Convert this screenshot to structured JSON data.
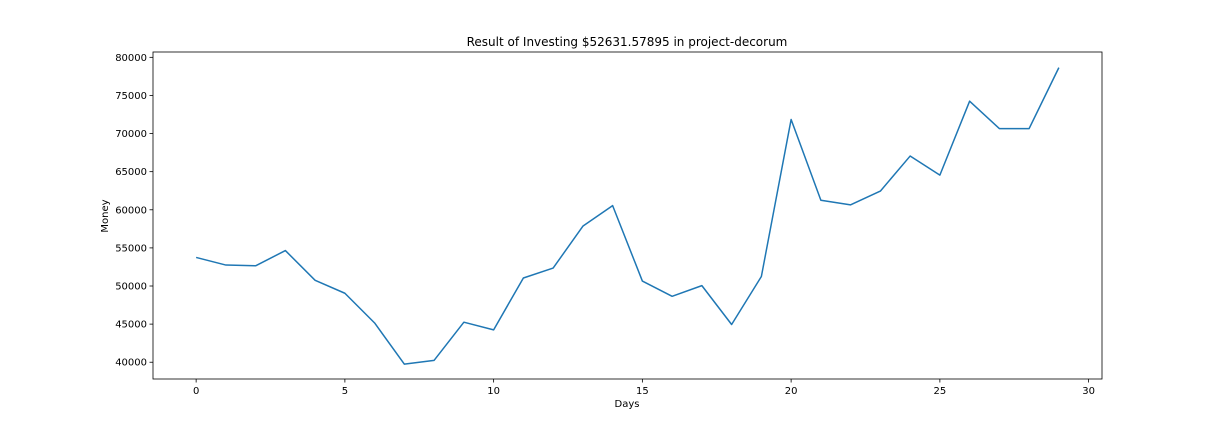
{
  "chart_data": {
    "type": "line",
    "title": "Result of Investing $52631.57895 in project-decorum",
    "xlabel": "Days",
    "ylabel": "Money",
    "xlim": [
      -1.45,
      30.45
    ],
    "ylim": [
      37800,
      80700
    ],
    "xticks": [
      0,
      5,
      10,
      15,
      20,
      25,
      30
    ],
    "yticks": [
      40000,
      45000,
      50000,
      55000,
      60000,
      65000,
      70000,
      75000,
      80000
    ],
    "grid": false,
    "line_color": "#1f77b4",
    "series": [
      {
        "x": [
          0,
          1,
          2,
          3,
          4,
          5,
          6,
          7,
          8,
          9,
          10,
          11,
          12,
          13,
          14,
          15,
          16,
          17,
          18,
          19,
          20,
          21,
          22,
          23,
          24,
          25,
          26,
          27,
          28,
          29
        ],
        "values": [
          53750,
          52750,
          52650,
          54650,
          50750,
          49050,
          45150,
          39750,
          40250,
          45250,
          44250,
          51050,
          52350,
          57850,
          60550,
          50650,
          48650,
          50050,
          44950,
          51250,
          71850,
          61250,
          60650,
          62450,
          67050,
          64550,
          74250,
          70650,
          70650,
          78650
        ]
      }
    ]
  }
}
